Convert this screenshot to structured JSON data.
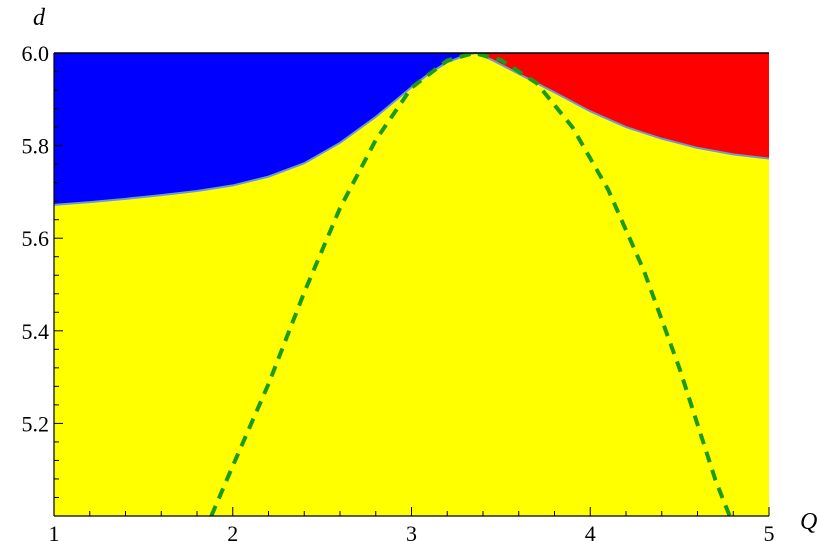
{
  "chart_data": {
    "type": "area",
    "title": "",
    "xlabel": "Q",
    "ylabel": "d",
    "xlim": [
      1,
      5
    ],
    "ylim": [
      5.0,
      6.0
    ],
    "x_ticks": [
      1,
      2,
      3,
      4,
      5
    ],
    "x_tick_labels": [
      "1",
      "2",
      "3",
      "4",
      "5"
    ],
    "y_ticks": [
      5.2,
      5.4,
      5.6,
      5.8,
      6.0
    ],
    "y_tick_labels": [
      "5.2",
      "5.4",
      "5.6",
      "5.8",
      "6.0"
    ],
    "grid": false,
    "colors": {
      "left_region": "#0000ff",
      "right_region": "#ff0000",
      "lower_region": "#ffff00",
      "boundary": "#6a9bd1",
      "dashed_curve": "#1a9c1a"
    },
    "boundary_curve": {
      "x": [
        1.0,
        1.2,
        1.4,
        1.6,
        1.8,
        2.0,
        2.2,
        2.4,
        2.6,
        2.8,
        3.0,
        3.1,
        3.2,
        3.3,
        3.36,
        3.45,
        3.6,
        3.8,
        4.0,
        4.2,
        4.4,
        4.6,
        4.8,
        5.0
      ],
      "y": [
        5.672,
        5.678,
        5.685,
        5.693,
        5.702,
        5.714,
        5.733,
        5.762,
        5.806,
        5.862,
        5.926,
        5.956,
        5.98,
        5.995,
        6.0,
        5.985,
        5.955,
        5.915,
        5.874,
        5.84,
        5.815,
        5.795,
        5.781,
        5.772
      ]
    },
    "dashed_curve": {
      "x": [
        1.88,
        2.0,
        2.2,
        2.4,
        2.6,
        2.8,
        3.0,
        3.2,
        3.35,
        3.5,
        3.7,
        3.9,
        4.1,
        4.3,
        4.5,
        4.7,
        4.78
      ],
      "y": [
        5.0,
        5.108,
        5.285,
        5.483,
        5.665,
        5.812,
        5.925,
        5.984,
        6.0,
        5.985,
        5.935,
        5.84,
        5.705,
        5.53,
        5.318,
        5.078,
        5.0
      ]
    }
  }
}
